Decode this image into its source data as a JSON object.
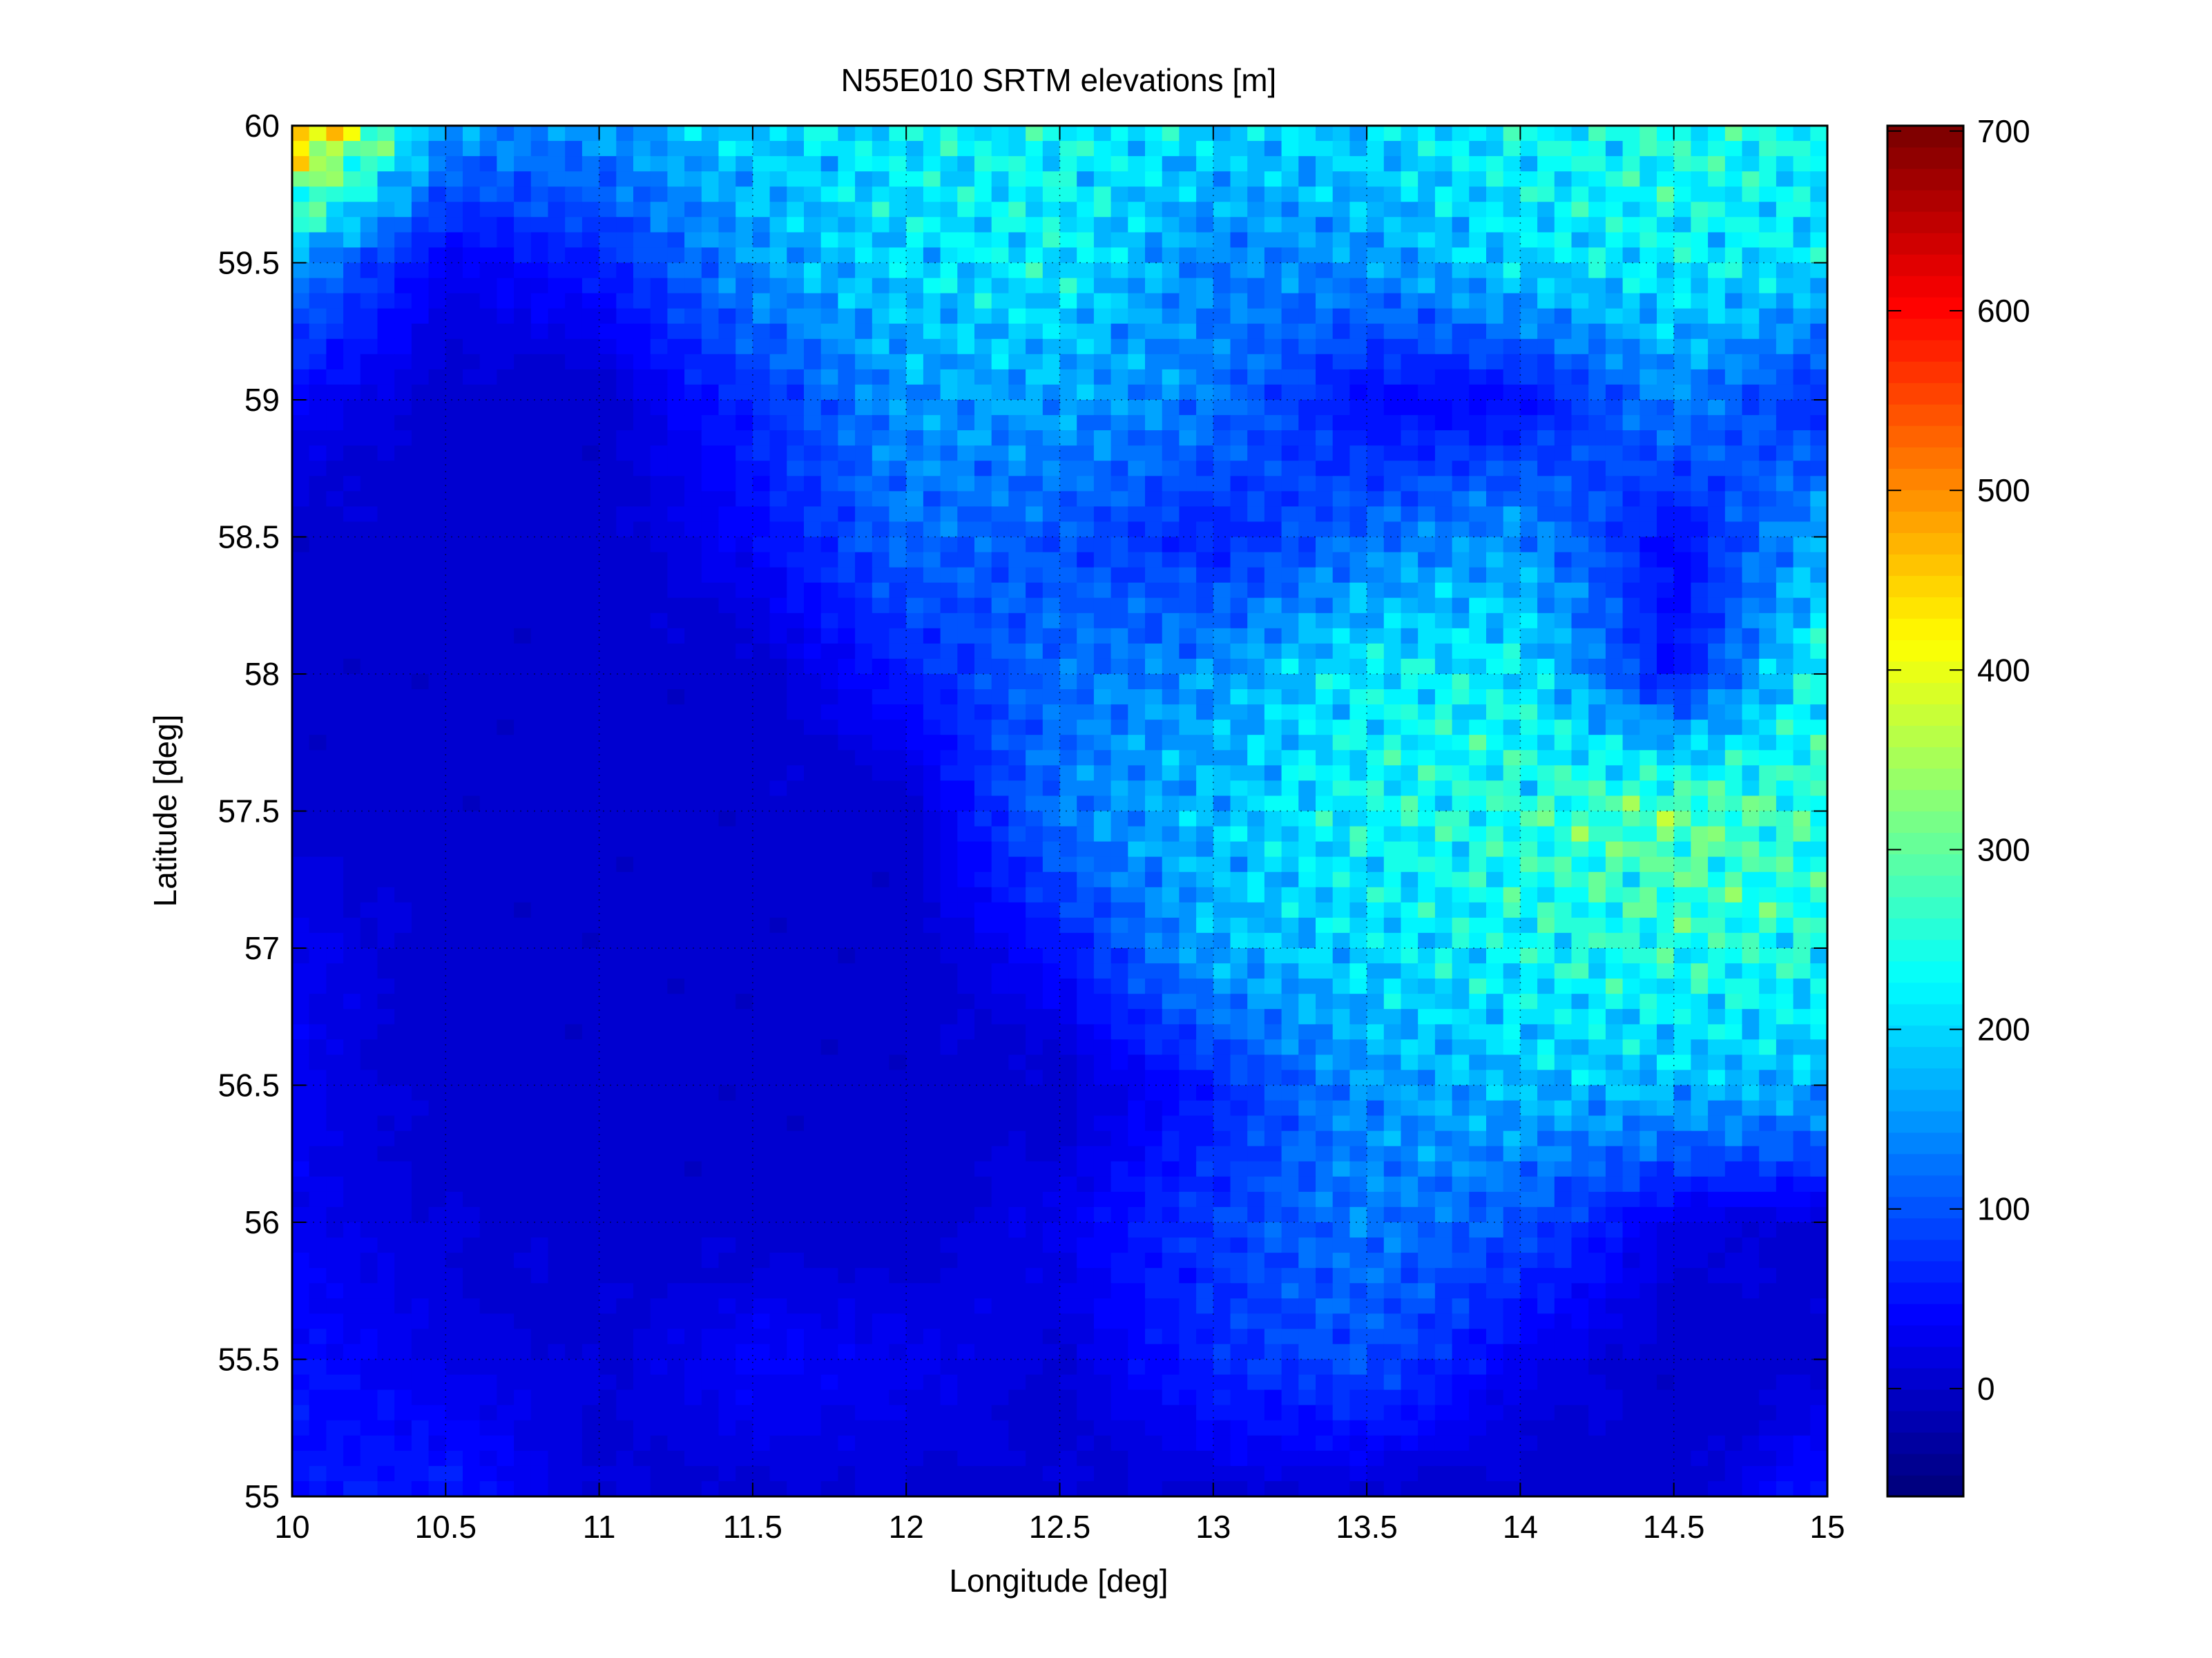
{
  "chart_data": {
    "type": "heatmap",
    "title": "N55E010 SRTM elevations [m]",
    "xlabel": "Longitude [deg]",
    "ylabel": "Latitude [deg]",
    "xlim": [
      10,
      15
    ],
    "ylim": [
      55,
      60
    ],
    "xticks": [
      "10",
      "10.5",
      "11",
      "11.5",
      "12",
      "12.5",
      "13",
      "13.5",
      "14",
      "14.5",
      "15"
    ],
    "yticks": [
      "55",
      "55.5",
      "56",
      "56.5",
      "57",
      "57.5",
      "58",
      "58.5",
      "59",
      "59.5",
      "60"
    ],
    "grid": true,
    "colormap": "jet",
    "clim": [
      -60,
      703
    ],
    "colorbar": {
      "ticks": [
        "0",
        "100",
        "200",
        "300",
        "400",
        "500",
        "600",
        "700"
      ],
      "placement": "right"
    },
    "grid_lon": [
      10,
      10.5,
      11,
      11.5,
      12,
      12.5,
      13,
      13.5,
      14,
      14.5,
      15
    ],
    "grid_lat": [
      60,
      59.5,
      59,
      58.5,
      58,
      57.5,
      57,
      56.5,
      56,
      55.5,
      55
    ],
    "elevation_estimates_m": [
      [
        500,
        150,
        150,
        200,
        220,
        230,
        200,
        200,
        230,
        250,
        230
      ],
      [
        150,
        30,
        60,
        150,
        200,
        220,
        130,
        150,
        200,
        220,
        200
      ],
      [
        40,
        0,
        0,
        70,
        150,
        160,
        130,
        40,
        40,
        140,
        60
      ],
      [
        0,
        0,
        0,
        40,
        120,
        100,
        60,
        120,
        150,
        40,
        170
      ],
      [
        0,
        0,
        0,
        0,
        60,
        120,
        150,
        220,
        220,
        40,
        250
      ],
      [
        0,
        0,
        0,
        0,
        0,
        130,
        180,
        230,
        250,
        300,
        250
      ],
      [
        30,
        0,
        0,
        0,
        0,
        50,
        170,
        200,
        230,
        250,
        240
      ],
      [
        30,
        0,
        0,
        0,
        0,
        0,
        60,
        150,
        180,
        180,
        170
      ],
      [
        30,
        10,
        0,
        0,
        0,
        30,
        80,
        130,
        100,
        20,
        10
      ],
      [
        50,
        20,
        10,
        40,
        30,
        10,
        70,
        100,
        30,
        0,
        0
      ],
      [
        50,
        60,
        10,
        10,
        10,
        5,
        10,
        5,
        0,
        0,
        60
      ]
    ]
  }
}
